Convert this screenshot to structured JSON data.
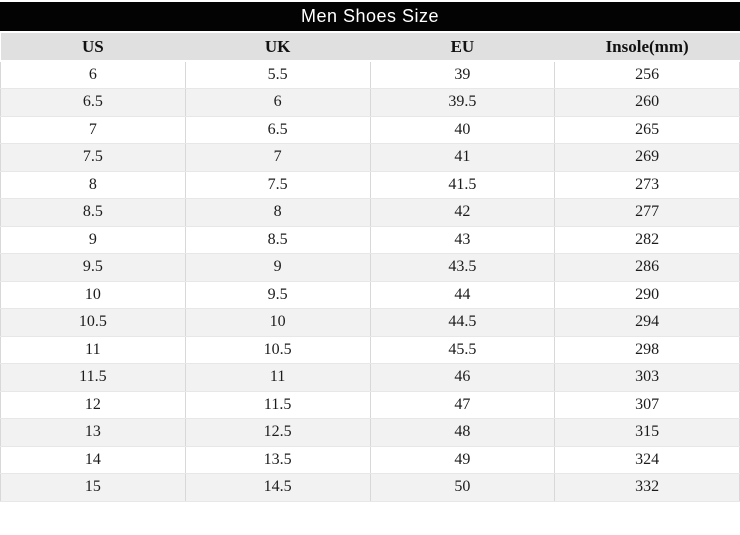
{
  "title": "Men Shoes Size",
  "chart_data": {
    "type": "table",
    "title": "Men Shoes Size",
    "columns": [
      "US",
      "UK",
      "EU",
      "Insole(mm)"
    ],
    "rows": [
      [
        "6",
        "5.5",
        "39",
        "256"
      ],
      [
        "6.5",
        "6",
        "39.5",
        "260"
      ],
      [
        "7",
        "6.5",
        "40",
        "265"
      ],
      [
        "7.5",
        "7",
        "41",
        "269"
      ],
      [
        "8",
        "7.5",
        "41.5",
        "273"
      ],
      [
        "8.5",
        "8",
        "42",
        "277"
      ],
      [
        "9",
        "8.5",
        "43",
        "282"
      ],
      [
        "9.5",
        "9",
        "43.5",
        "286"
      ],
      [
        "10",
        "9.5",
        "44",
        "290"
      ],
      [
        "10.5",
        "10",
        "44.5",
        "294"
      ],
      [
        "11",
        "10.5",
        "45.5",
        "298"
      ],
      [
        "11.5",
        "11",
        "46",
        "303"
      ],
      [
        "12",
        "11.5",
        "47",
        "307"
      ],
      [
        "13",
        "12.5",
        "48",
        "315"
      ],
      [
        "14",
        "13.5",
        "49",
        "324"
      ],
      [
        "15",
        "14.5",
        "50",
        "332"
      ]
    ]
  },
  "colors": {
    "title_bg": "#030303",
    "title_text": "#ffffff",
    "header_bg": "#e0e0e0",
    "row_alt_bg": "#f2f2f2",
    "border": "#d8d8d8",
    "text": "#1c1c1c"
  }
}
